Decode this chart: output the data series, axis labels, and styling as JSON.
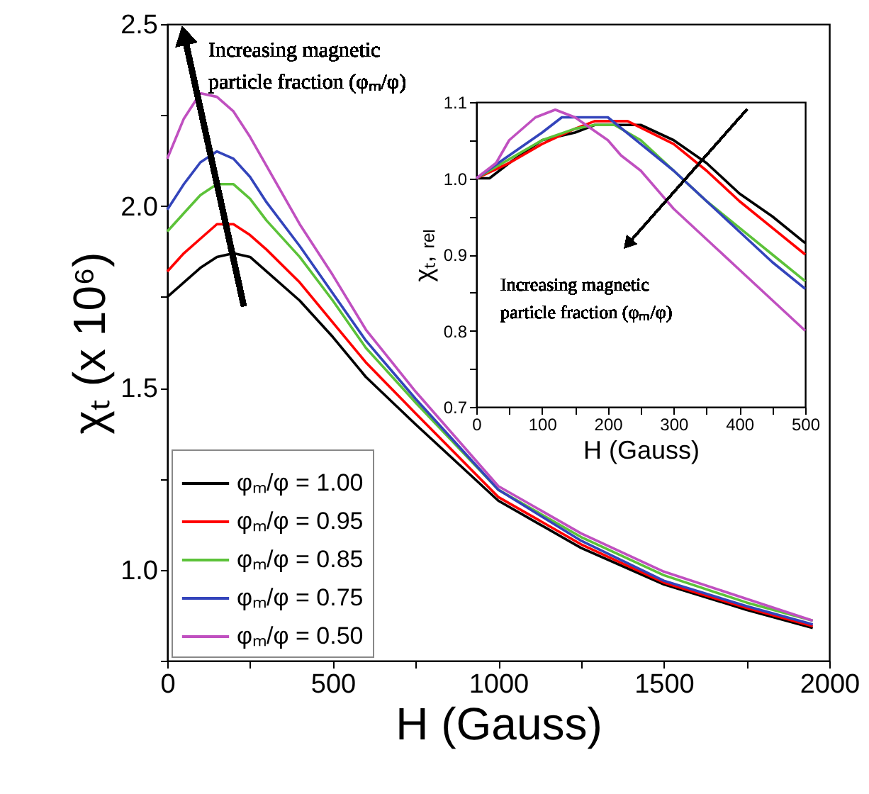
{
  "chart_data": [
    {
      "type": "line",
      "xlabel": "H (Gauss)",
      "ylabel": "χₜ (x 10⁶)",
      "grid": false,
      "legend": "bottom left",
      "annotations": [
        "Increasing magnetic particle fraction (φₘ/φ)"
      ],
      "x": [
        0,
        50,
        100,
        150,
        200,
        250,
        300,
        400,
        500,
        600,
        750,
        1000,
        1250,
        1500,
        1750,
        1950
      ],
      "xlim": [
        0,
        2000
      ],
      "xticks": [
        0,
        {
          "value": 250,
          "label": null
        },
        500,
        {
          "value": 750,
          "label": null
        },
        1000,
        {
          "value": 1250,
          "label": null
        },
        1500,
        {
          "value": 1750,
          "label": null
        },
        2000
      ],
      "ylim": [
        0.75,
        2.5
      ],
      "yticks": [
        {
          "value": 0.75,
          "label": null
        },
        {
          "value": 1,
          "label": "1.0"
        },
        {
          "value": 1.25,
          "label": null
        },
        1.5,
        {
          "value": 1.75,
          "label": null
        },
        {
          "value": 2,
          "label": "2.0"
        },
        {
          "value": 2.25,
          "label": null
        },
        2.5
      ],
      "series": [
        {
          "name": "φₘ/φ = 1.00",
          "color": "#000000",
          "values": [
            1.75,
            1.79,
            1.83,
            1.86,
            1.87,
            1.86,
            1.82,
            1.74,
            1.64,
            1.53,
            1.4,
            1.19,
            1.06,
            0.96,
            0.89,
            0.84
          ]
        },
        {
          "name": "φₘ/φ = 0.95",
          "color": "#ff0000",
          "values": [
            1.82,
            1.87,
            1.91,
            1.95,
            1.95,
            1.92,
            1.88,
            1.79,
            1.68,
            1.57,
            1.43,
            1.2,
            1.07,
            0.965,
            0.895,
            0.845
          ]
        },
        {
          "name": "φₘ/φ = 0.85",
          "color": "#5cc239",
          "values": [
            1.93,
            1.98,
            2.03,
            2.06,
            2.06,
            2.02,
            1.96,
            1.86,
            1.74,
            1.61,
            1.46,
            1.22,
            1.09,
            0.985,
            0.91,
            0.86
          ]
        },
        {
          "name": "φₘ/φ = 0.75",
          "color": "#3344bb",
          "values": [
            1.99,
            2.06,
            2.12,
            2.15,
            2.13,
            2.08,
            2.01,
            1.89,
            1.76,
            1.63,
            1.47,
            1.22,
            1.08,
            0.97,
            0.9,
            0.85
          ]
        },
        {
          "name": "φₘ/φ = 0.50",
          "color": "#c050c0",
          "values": [
            2.13,
            2.24,
            2.31,
            2.3,
            2.26,
            2.19,
            2.11,
            1.95,
            1.81,
            1.66,
            1.49,
            1.23,
            1.1,
            0.995,
            0.92,
            0.86
          ]
        }
      ]
    },
    {
      "type": "line",
      "xlabel": "H (Gauss)",
      "ylabel": "χₜ, ᵣₑₗ",
      "grid": false,
      "annotations": [
        "Increasing magnetic particle fraction (φₘ/φ)"
      ],
      "xlim": [
        0,
        500
      ],
      "xticks": [
        0,
        {
          "value": 50,
          "label": null
        },
        100,
        {
          "value": 150,
          "label": null
        },
        200,
        {
          "value": 250,
          "label": null
        },
        300,
        {
          "value": 350,
          "label": null
        },
        400,
        {
          "value": 450,
          "label": null
        },
        500
      ],
      "ylim": [
        0.7,
        1.1
      ],
      "yticks": [
        0.7,
        {
          "value": 0.75,
          "label": null
        },
        0.8,
        {
          "value": 0.85,
          "label": null
        },
        0.9,
        {
          "value": 0.95,
          "label": null
        },
        {
          "value": 1,
          "label": "1.0"
        },
        {
          "value": 1.05,
          "label": null
        },
        1.1
      ],
      "series": [
        {
          "color": "#000000",
          "x": [
            0,
            20,
            50,
            100,
            150,
            180,
            250,
            300,
            350,
            400,
            450,
            500
          ],
          "values": [
            1.0,
            1.0,
            1.02,
            1.05,
            1.06,
            1.07,
            1.07,
            1.05,
            1.02,
            0.98,
            0.95,
            0.915
          ]
        },
        {
          "color": "#ff0000",
          "x": [
            0,
            50,
            100,
            150,
            180,
            230,
            300,
            350,
            400,
            450,
            500
          ],
          "values": [
            1.0,
            1.02,
            1.045,
            1.065,
            1.075,
            1.075,
            1.045,
            1.01,
            0.97,
            0.935,
            0.9
          ]
        },
        {
          "color": "#5cc239",
          "x": [
            0,
            50,
            100,
            150,
            180,
            210,
            250,
            300,
            350,
            400,
            450,
            500
          ],
          "values": [
            1.0,
            1.025,
            1.05,
            1.065,
            1.07,
            1.07,
            1.05,
            1.01,
            0.97,
            0.935,
            0.9,
            0.865
          ]
        },
        {
          "color": "#3344bb",
          "x": [
            0,
            50,
            100,
            130,
            200,
            250,
            300,
            350,
            400,
            450,
            500
          ],
          "values": [
            1.0,
            1.03,
            1.06,
            1.08,
            1.08,
            1.045,
            1.01,
            0.97,
            0.93,
            0.89,
            0.855
          ]
        },
        {
          "color": "#c050c0",
          "x": [
            0,
            30,
            50,
            90,
            120,
            150,
            200,
            220,
            250,
            300,
            350,
            400,
            450,
            500
          ],
          "values": [
            1.0,
            1.02,
            1.05,
            1.08,
            1.09,
            1.08,
            1.05,
            1.03,
            1.01,
            0.96,
            0.92,
            0.88,
            0.84,
            0.8
          ]
        }
      ]
    }
  ]
}
